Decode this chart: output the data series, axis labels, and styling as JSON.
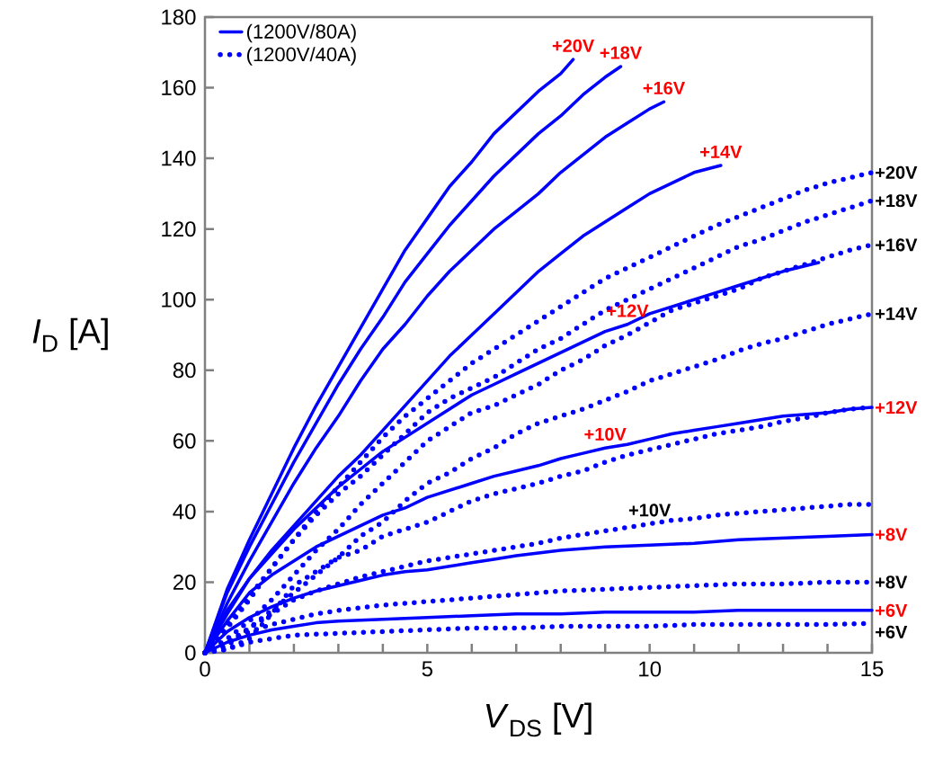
{
  "chart_data": {
    "type": "line",
    "xlabel": "*V*$_{DS}$ [V]",
    "ylabel": "*I*$_{D}$ [A]",
    "xlim": [
      0,
      15
    ],
    "ylim": [
      0,
      180
    ],
    "xticks": [
      0,
      {
        "value": 1,
        "label": null
      },
      {
        "value": 2,
        "label": null
      },
      {
        "value": 3,
        "label": null
      },
      {
        "value": 4,
        "label": null
      },
      5,
      {
        "value": 6,
        "label": null
      },
      {
        "value": 7,
        "label": null
      },
      {
        "value": 8,
        "label": null
      },
      {
        "value": 9,
        "label": null
      },
      10,
      {
        "value": 11,
        "label": null
      },
      {
        "value": 12,
        "label": null
      },
      {
        "value": 13,
        "label": null
      },
      {
        "value": 14,
        "label": null
      },
      15
    ],
    "yticks": [
      0,
      20,
      40,
      60,
      80,
      100,
      120,
      140,
      160,
      180
    ],
    "legend": "top left",
    "series": [
      {
        "name": "(1200V/80A)",
        "color": "#0000ff",
        "line_style": "solid",
        "x": [
          0,
          0.5,
          1,
          1.5,
          2,
          2.5,
          3,
          3.5,
          4,
          4.5,
          5,
          5.5,
          6,
          6.5,
          7,
          7.5,
          8,
          8.28
        ],
        "values": [
          0,
          18,
          32,
          45,
          58,
          70,
          81,
          92,
          103,
          114,
          123,
          132,
          139,
          147,
          153,
          159,
          164,
          168
        ]
      },
      {
        "color": "#0000ff",
        "line_style": "solid",
        "x": [
          0,
          0.5,
          1,
          1.5,
          2,
          2.5,
          3,
          3.5,
          4,
          4.5,
          5,
          5.5,
          6,
          6.5,
          7,
          7.5,
          8,
          8.5,
          9,
          9.35
        ],
        "values": [
          0,
          17,
          30,
          42,
          54,
          65,
          76,
          86,
          95,
          105,
          113,
          121,
          128,
          135,
          141,
          147,
          152,
          158,
          163,
          166
        ]
      },
      {
        "color": "#0000ff",
        "line_style": "solid",
        "x": [
          0,
          0.5,
          1,
          1.5,
          2,
          2.5,
          3,
          3.5,
          4,
          4.5,
          5,
          5.5,
          6,
          6.5,
          7,
          7.5,
          8,
          8.5,
          9,
          9.5,
          10,
          10.32
        ],
        "values": [
          0,
          14,
          26,
          37,
          48,
          58,
          67,
          77,
          86,
          93,
          101,
          108,
          114,
          120,
          125,
          130,
          136,
          141,
          146,
          150,
          154,
          156
        ]
      },
      {
        "color": "#0000ff",
        "line_style": "solid",
        "x": [
          0,
          0.5,
          1,
          1.5,
          2,
          2.5,
          3,
          3.5,
          4,
          4.5,
          5,
          5.5,
          6,
          6.5,
          7,
          7.5,
          8,
          8.5,
          9,
          9.5,
          10,
          10.5,
          11,
          11.6
        ],
        "values": [
          0,
          12,
          21,
          29,
          36,
          43,
          50,
          56,
          63,
          70,
          77,
          84,
          90,
          96,
          102,
          108,
          113,
          118,
          122,
          126,
          130,
          133,
          136,
          138
        ]
      },
      {
        "color": "#0000ff",
        "line_style": "solid",
        "x": [
          0,
          0.5,
          1,
          1.5,
          2,
          2.5,
          3,
          3.5,
          4,
          4.5,
          5,
          5.5,
          6,
          6.5,
          7,
          7.5,
          8,
          8.5,
          9,
          9.5,
          10,
          10.5,
          11,
          11.5,
          12,
          12.5,
          13,
          13.8
        ],
        "values": [
          0,
          11,
          21,
          28,
          35,
          41,
          47,
          52,
          57,
          61,
          65,
          69,
          73,
          76,
          79,
          82,
          85,
          88,
          91,
          93,
          96,
          98,
          100,
          102,
          104,
          106,
          108,
          110.5
        ]
      },
      {
        "color": "#0000ff",
        "line_style": "solid",
        "x": [
          0,
          0.5,
          1,
          1.5,
          2,
          2.5,
          3,
          3.5,
          4,
          4.5,
          5,
          5.5,
          6,
          6.5,
          7,
          7.5,
          8,
          8.5,
          9,
          9.5,
          10,
          10.5,
          11,
          11.5,
          12,
          12.5,
          13,
          13.5,
          14,
          14.5,
          15
        ],
        "values": [
          0,
          9,
          17,
          22,
          26,
          30,
          33,
          36,
          39,
          41,
          44,
          46,
          48,
          50,
          51.5,
          53,
          55,
          56.5,
          58,
          59,
          60.5,
          62,
          63,
          64,
          65,
          66,
          67,
          67.5,
          68,
          69,
          69.5
        ]
      },
      {
        "color": "#0000ff",
        "line_style": "solid",
        "x": [
          0,
          0.5,
          1,
          1.5,
          2,
          2.5,
          3,
          3.5,
          4,
          4.5,
          5,
          5.5,
          6,
          6.5,
          7,
          8,
          9,
          10,
          11,
          12,
          13,
          14,
          15
        ],
        "values": [
          0,
          6,
          10,
          13,
          15.5,
          17.5,
          19,
          20.5,
          22,
          23,
          23.5,
          24.5,
          25.5,
          26.5,
          27.5,
          29,
          30,
          30.5,
          31,
          32,
          32.5,
          33,
          33.5
        ]
      },
      {
        "color": "#0000ff",
        "line_style": "solid",
        "x": [
          0,
          0.5,
          1,
          1.5,
          2,
          2.5,
          3,
          4,
          5,
          6,
          7,
          8,
          9,
          10,
          11,
          12,
          13,
          14,
          15
        ],
        "values": [
          0,
          3,
          5,
          6.5,
          7.5,
          8.5,
          9,
          9.5,
          10,
          10.5,
          11,
          11,
          11.5,
          11.5,
          11.5,
          12,
          12,
          12,
          12
        ]
      },
      {
        "name": "(1200V/40A)",
        "color": "#0000ff",
        "line_style": "dotted",
        "x": [
          0,
          0.5,
          1,
          1.5,
          2,
          2.5,
          3,
          3.5,
          4,
          4.5,
          5,
          5.5,
          6,
          6.5,
          7,
          7.5,
          8,
          8.5,
          9,
          9.5,
          10,
          10.5,
          11,
          11.5,
          12,
          12.5,
          13,
          13.5,
          14,
          14.5,
          15
        ],
        "values": [
          0,
          8,
          16,
          24,
          32,
          40,
          47,
          54,
          61,
          67,
          72,
          77,
          82,
          86,
          90,
          94,
          98,
          102,
          106,
          109,
          112,
          115,
          118,
          121,
          123.5,
          126,
          128.5,
          131,
          133,
          134.5,
          136
        ]
      },
      {
        "color": "#0000ff",
        "line_style": "dotted",
        "x": [
          0,
          0.5,
          1,
          1.5,
          2,
          2.5,
          3,
          3.5,
          4,
          4.5,
          5,
          5.5,
          6,
          6.5,
          7,
          7.5,
          8,
          8.5,
          9,
          9.5,
          10,
          10.5,
          11,
          11.5,
          12,
          12.5,
          13,
          13.5,
          14,
          14.5,
          15
        ],
        "values": [
          0,
          7,
          15,
          24,
          32,
          39,
          45,
          50,
          56,
          62,
          68,
          72,
          75,
          78,
          82,
          86,
          89,
          93,
          97,
          100,
          103,
          106,
          109,
          112,
          115,
          117,
          119.5,
          122,
          124,
          126,
          128
        ]
      },
      {
        "color": "#0000ff",
        "line_style": "dotted",
        "x": [
          0,
          0.5,
          1,
          1.5,
          2,
          2.5,
          3,
          3.5,
          4,
          4.5,
          5,
          5.5,
          6,
          6.5,
          7,
          7.5,
          8,
          8.5,
          9,
          9.5,
          10,
          10.5,
          11,
          11.5,
          12,
          12.5,
          13,
          13.5,
          14,
          14.5,
          15
        ],
        "values": [
          0,
          4,
          9,
          15,
          22,
          29,
          35,
          42,
          48,
          54,
          60,
          64,
          68,
          70,
          73,
          76,
          80,
          83,
          87,
          90,
          93.5,
          97,
          99,
          101,
          103,
          106,
          108,
          110,
          112,
          114,
          115.5
        ]
      },
      {
        "color": "#0000ff",
        "line_style": "dotted",
        "x": [
          0,
          0.5,
          1,
          1.5,
          2,
          2.5,
          3,
          3.5,
          4,
          4.5,
          5,
          5.5,
          6,
          6.5,
          7,
          7.5,
          8,
          8.5,
          9,
          9.5,
          10,
          10.5,
          11,
          11.5,
          12,
          12.5,
          13,
          13.5,
          14,
          14.5,
          15
        ],
        "values": [
          0,
          3,
          7,
          12,
          17,
          22,
          27,
          33,
          37,
          43,
          48,
          51,
          55,
          58,
          62,
          65,
          67,
          69,
          71.5,
          74,
          77,
          79,
          81,
          83,
          85.5,
          87.5,
          89,
          91,
          93,
          94.5,
          96
        ]
      },
      {
        "color": "#0000ff",
        "line_style": "dotted",
        "x": [
          0,
          0.5,
          1,
          1.5,
          2,
          2.5,
          3,
          3.5,
          4,
          4.5,
          5,
          5.5,
          6,
          6.5,
          7,
          7.5,
          8,
          8.5,
          9,
          9.5,
          10,
          10.5,
          11,
          11.5,
          12,
          12.5,
          13,
          13.5,
          14,
          14.5,
          15
        ],
        "values": [
          0,
          1,
          4,
          11,
          19,
          23,
          27,
          29,
          33,
          35,
          37,
          40,
          43,
          45,
          46.5,
          48,
          50,
          51.5,
          54,
          56,
          57.5,
          59,
          60.5,
          62,
          63,
          64,
          65.5,
          66.5,
          68,
          69,
          69.5
        ]
      },
      {
        "color": "#0000ff",
        "line_style": "dotted",
        "x": [
          0,
          0.5,
          1,
          1.5,
          2,
          2.5,
          3,
          3.5,
          4,
          4.5,
          5,
          5.5,
          6,
          6.5,
          7,
          7.5,
          8,
          8.5,
          9,
          9.5,
          10,
          10.5,
          11,
          11.5,
          12,
          12.5,
          13,
          13.5,
          14,
          14.5,
          15
        ],
        "values": [
          0,
          2,
          7,
          11,
          15,
          17.5,
          19.5,
          21.5,
          23,
          24.5,
          26,
          27,
          28,
          29,
          30,
          31,
          32.5,
          33.5,
          34.5,
          35.5,
          36.5,
          37.5,
          38,
          39,
          39.5,
          40,
          40.5,
          41,
          41.5,
          42,
          42
        ]
      },
      {
        "color": "#0000ff",
        "line_style": "dotted",
        "x": [
          0,
          0.5,
          1,
          1.5,
          2,
          2.5,
          3,
          4,
          5,
          6,
          7,
          8,
          9,
          10,
          11,
          12,
          13,
          14,
          15
        ],
        "values": [
          0,
          3,
          6,
          8,
          9.5,
          11,
          12,
          13.5,
          14.5,
          15.5,
          16.5,
          17.5,
          18,
          18.5,
          19,
          19.5,
          19.5,
          20,
          20
        ]
      },
      {
        "color": "#0000ff",
        "line_style": "dotted",
        "x": [
          0,
          0.5,
          1,
          1.5,
          2,
          3,
          4,
          5,
          6,
          7,
          8,
          9,
          10,
          11,
          12,
          13,
          14,
          15
        ],
        "values": [
          0,
          1,
          3,
          4,
          5,
          5.5,
          6,
          6.5,
          7,
          7,
          7.5,
          7.5,
          7.5,
          8,
          8,
          8,
          8,
          8.3
        ]
      }
    ],
    "annotations": [
      {
        "text": "+20V",
        "x": 8.28,
        "y": 168
      },
      {
        "text": "+18V",
        "x": 9.35,
        "y": 166
      },
      {
        "text": "+16V",
        "x": 10.32,
        "y": 156
      },
      {
        "text": "+14V",
        "x": 11.6,
        "y": 138
      },
      {
        "text": "+12V",
        "x": 9.5,
        "y": 93
      },
      {
        "text": "+10V",
        "x": 9,
        "y": 58
      },
      {
        "text": "+8V",
        "x": 15,
        "y": 33.5
      },
      {
        "text": "+6V",
        "x": 15,
        "y": 12
      },
      {
        "text": "+20V",
        "x": 15,
        "y": 136
      },
      {
        "text": "+18V",
        "x": 15,
        "y": 128
      },
      {
        "text": "+16V",
        "x": 15,
        "y": 115.5
      },
      {
        "text": "+14V",
        "x": 15,
        "y": 96
      },
      {
        "text": "+12V",
        "x": 15,
        "y": 69.5
      },
      {
        "text": "+10V",
        "x": 10,
        "y": 36.5
      },
      {
        "text": "+8V",
        "x": 15,
        "y": 20
      },
      {
        "text": "+6V",
        "x": 15,
        "y": 8.3
      }
    ]
  }
}
